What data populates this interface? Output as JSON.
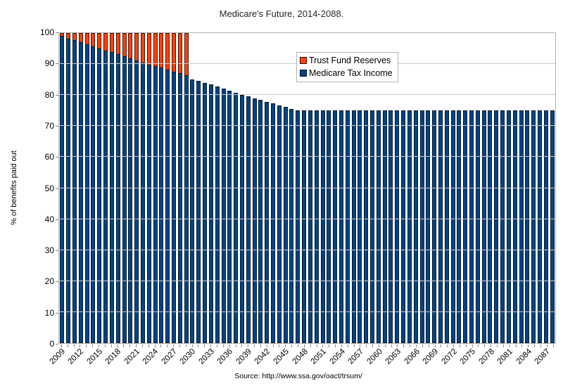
{
  "title": "Medicare's Future, 2014-2088.",
  "y_axis_title": "% of benefits paid out",
  "source_note": "Source: http://www.ssa.gov/oact/trsum/",
  "colors": {
    "medicare_tax_income": "#004586",
    "trust_fund_reserves": "#FF420E",
    "gridline": "#c9c9c9",
    "plot_border": "#b0b0b0"
  },
  "legend": {
    "position": "inside-top-center",
    "items": [
      {
        "label": "Trust Fund Reserves",
        "color": "#FF420E"
      },
      {
        "label": "Medicare Tax Income",
        "color": "#004586"
      }
    ]
  },
  "chart_data": {
    "type": "bar",
    "stacked": true,
    "title": "Medicare's Future, 2014-2088.",
    "xlabel": "",
    "ylabel": "% of benefits paid out",
    "ylim": [
      0,
      100
    ],
    "grid": true,
    "x": [
      2009,
      2010,
      2011,
      2012,
      2013,
      2014,
      2015,
      2016,
      2017,
      2018,
      2019,
      2020,
      2021,
      2022,
      2023,
      2024,
      2025,
      2026,
      2027,
      2028,
      2029,
      2030,
      2031,
      2032,
      2033,
      2034,
      2035,
      2036,
      2037,
      2038,
      2039,
      2040,
      2041,
      2042,
      2043,
      2044,
      2045,
      2046,
      2047,
      2048,
      2049,
      2050,
      2051,
      2052,
      2053,
      2054,
      2055,
      2056,
      2057,
      2058,
      2059,
      2060,
      2061,
      2062,
      2063,
      2064,
      2065,
      2066,
      2067,
      2068,
      2069,
      2070,
      2071,
      2072,
      2073,
      2074,
      2075,
      2076,
      2077,
      2078,
      2079,
      2080,
      2081,
      2082,
      2083,
      2084,
      2085,
      2086,
      2087,
      2088
    ],
    "x_tick_labels": [
      2009,
      2012,
      2015,
      2018,
      2021,
      2024,
      2027,
      2030,
      2033,
      2036,
      2039,
      2042,
      2045,
      2048,
      2051,
      2054,
      2057,
      2060,
      2063,
      2066,
      2069,
      2072,
      2075,
      2078,
      2081,
      2084,
      2087
    ],
    "y_ticks": [
      0,
      10,
      20,
      30,
      40,
      50,
      60,
      70,
      80,
      90,
      100
    ],
    "series": [
      {
        "name": "Medicare Tax Income",
        "color": "#004586",
        "values": [
          99.0,
          98.3,
          97.7,
          97.0,
          96.4,
          95.7,
          95.1,
          94.4,
          93.8,
          93.1,
          92.5,
          91.8,
          91.2,
          90.5,
          89.9,
          89.4,
          88.8,
          88.2,
          87.6,
          87.0,
          86.3,
          85.0,
          84.5,
          84.0,
          83.4,
          82.8,
          82.2,
          81.4,
          80.7,
          80.1,
          79.6,
          79.0,
          78.5,
          77.8,
          77.3,
          76.7,
          76.2,
          75.6,
          75.0,
          75.0,
          75.0,
          75.0,
          75.0,
          75.0,
          75.0,
          75.0,
          75.0,
          75.0,
          75.0,
          75.0,
          75.0,
          75.0,
          75.0,
          75.0,
          75.0,
          75.0,
          75.0,
          75.0,
          75.0,
          75.0,
          75.0,
          75.0,
          75.0,
          75.0,
          75.0,
          75.0,
          75.0,
          75.0,
          75.0,
          75.0,
          75.0,
          75.0,
          75.0,
          75.0,
          75.0,
          75.0,
          75.0,
          75.0,
          75.0,
          75.0
        ]
      },
      {
        "name": "Trust Fund Reserves",
        "color": "#FF420E",
        "values": [
          1.0,
          1.7,
          2.3,
          3.0,
          3.6,
          4.3,
          4.9,
          5.6,
          6.2,
          6.9,
          7.5,
          8.2,
          8.8,
          9.5,
          10.1,
          10.6,
          11.2,
          11.8,
          12.4,
          13.0,
          13.7,
          0,
          0,
          0,
          0,
          0,
          0,
          0,
          0,
          0,
          0,
          0,
          0,
          0,
          0,
          0,
          0,
          0,
          0,
          0,
          0,
          0,
          0,
          0,
          0,
          0,
          0,
          0,
          0,
          0,
          0,
          0,
          0,
          0,
          0,
          0,
          0,
          0,
          0,
          0,
          0,
          0,
          0,
          0,
          0,
          0,
          0,
          0,
          0,
          0,
          0,
          0,
          0,
          0,
          0,
          0,
          0,
          0,
          0,
          0
        ]
      }
    ]
  }
}
